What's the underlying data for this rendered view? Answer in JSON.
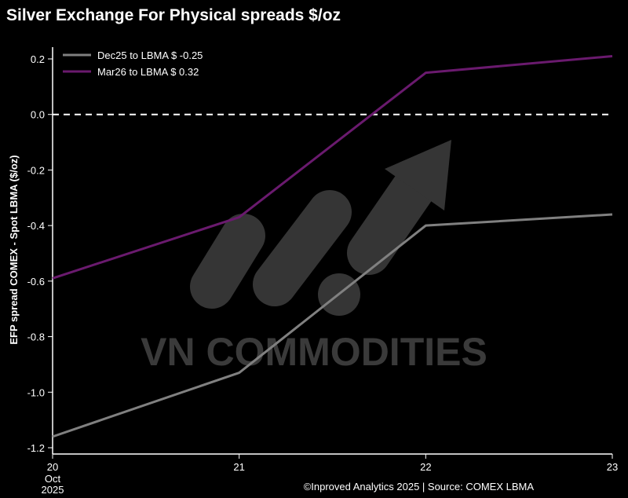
{
  "chart_data": {
    "type": "line",
    "title": "Silver Exchange For Physical spreads $/oz",
    "ylabel": "EFP spread COMEX - Spot LBMA ($/oz)",
    "xlabel": "",
    "x": [
      "20",
      "21",
      "22",
      "23"
    ],
    "x_tick_labels": [
      "20",
      "21",
      "22",
      "23"
    ],
    "x_tick_sublabels": [
      "Oct",
      "2025"
    ],
    "ylim": [
      -1.22,
      0.28
    ],
    "yticks": [
      "0.2",
      "0.0",
      "-0.2",
      "-0.4",
      "-0.6",
      "-0.8",
      "-1.0",
      "-1.2"
    ],
    "ytick_values": [
      0.2,
      0.0,
      -0.2,
      -0.4,
      -0.6,
      -0.8,
      -1.0,
      -1.2
    ],
    "reference_line": 0.0,
    "grid": false,
    "legend_position": "top-left",
    "series": [
      {
        "name": "Dec25 to LBMA $ -0.25",
        "values": [
          -1.16,
          -0.93,
          -0.4,
          -0.36
        ],
        "color": "#808080"
      },
      {
        "name": "Mar26 to LBMA $ 0.32",
        "values": [
          -0.59,
          -0.37,
          0.15,
          0.21
        ],
        "color": "#6a1a6e"
      }
    ],
    "source": "©Inproved Analytics 2025 | Source: COMEX LBMA"
  },
  "watermark": {
    "text": "VN COMMODITIES",
    "color": "#3a3a3a"
  },
  "colors": {
    "background": "#000000",
    "text": "#ffffff",
    "zero_line": "#ffffff"
  }
}
